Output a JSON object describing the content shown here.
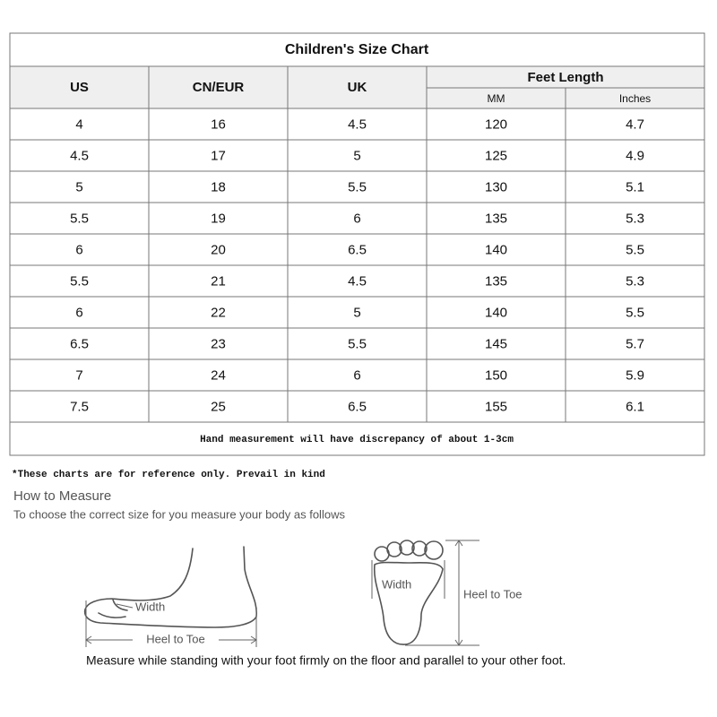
{
  "table": {
    "title": "Children's Size Chart",
    "headers": [
      "US",
      "CN/EUR",
      "UK"
    ],
    "group_header": "Feet Length",
    "sub_headers": [
      "MM",
      "Inches"
    ],
    "rows": [
      [
        "4",
        "16",
        "4.5",
        "120",
        "4.7"
      ],
      [
        "4.5",
        "17",
        "5",
        "125",
        "4.9"
      ],
      [
        "5",
        "18",
        "5.5",
        "130",
        "5.1"
      ],
      [
        "5.5",
        "19",
        "6",
        "135",
        "5.3"
      ],
      [
        "6",
        "20",
        "6.5",
        "140",
        "5.5"
      ],
      [
        "5.5",
        "21",
        "4.5",
        "135",
        "5.3"
      ],
      [
        "6",
        "22",
        "5",
        "140",
        "5.5"
      ],
      [
        "6.5",
        "23",
        "5.5",
        "145",
        "5.7"
      ],
      [
        "7",
        "24",
        "6",
        "150",
        "5.9"
      ],
      [
        "7.5",
        "25",
        "6.5",
        "155",
        "6.1"
      ]
    ],
    "note": "Hand measurement will have discrepancy of about 1-3cm"
  },
  "footnote": "*These charts are for reference only. Prevail in kind",
  "measure": {
    "title": "How to Measure",
    "subtitle": "To choose the correct size for you measure your body as follows",
    "side_width": "Width",
    "side_length": "Heel to Toe",
    "top_width": "Width",
    "top_length": "Heel to Toe",
    "instruction": "Measure while standing with your foot firmly on the floor and parallel to your other foot."
  }
}
